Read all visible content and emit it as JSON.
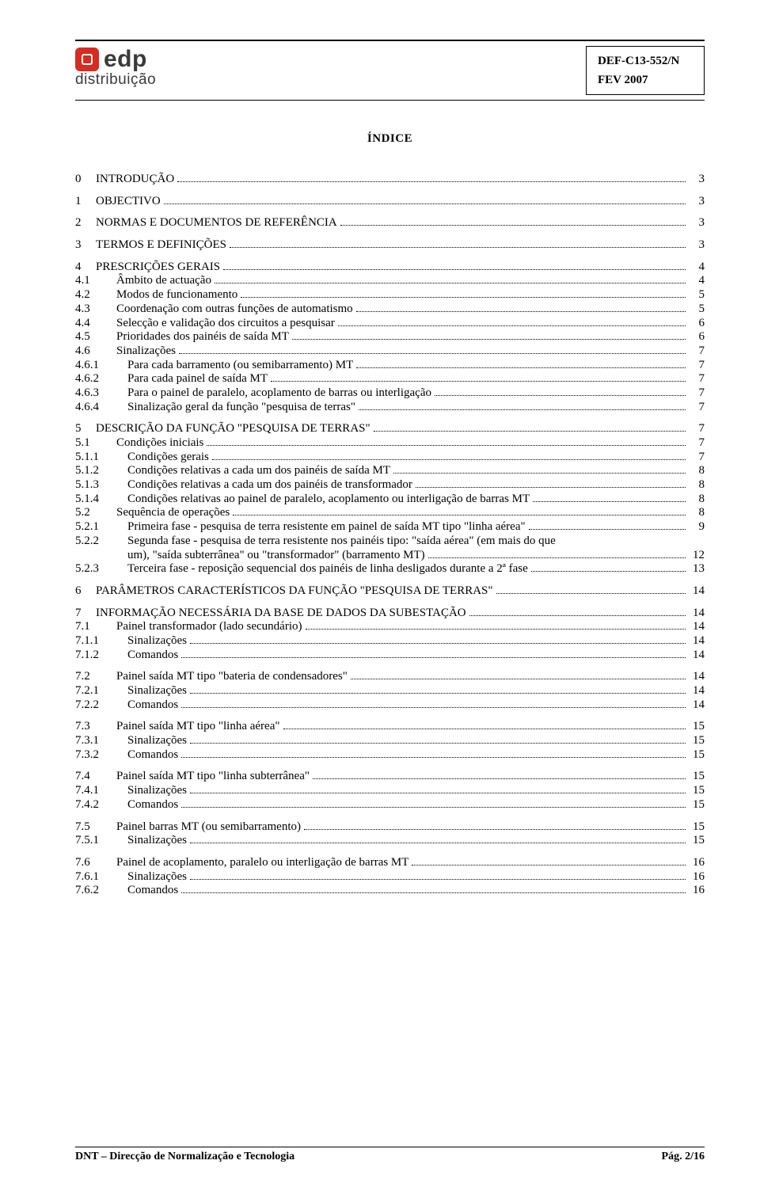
{
  "logo": {
    "brand": "edp",
    "sub": "distribuição"
  },
  "doc_ref": {
    "code": "DEF-C13-552/N",
    "date": "FEV 2007"
  },
  "toc_title": "ÍNDICE",
  "footer": {
    "left": "DNT – Direcção de Normalização e Tecnologia",
    "right": "Pág. 2/16"
  },
  "toc": [
    {
      "group": [
        {
          "n": "0",
          "t": "INTRODUÇÃO",
          "p": "3",
          "lvl": 0
        }
      ]
    },
    {
      "group": [
        {
          "n": "1",
          "t": "OBJECTIVO",
          "p": "3",
          "lvl": 0
        }
      ]
    },
    {
      "group": [
        {
          "n": "2",
          "t": "NORMAS E DOCUMENTOS DE REFERÊNCIA",
          "p": "3",
          "lvl": 0
        }
      ]
    },
    {
      "group": [
        {
          "n": "3",
          "t": "TERMOS E DEFINIÇÕES",
          "p": "3",
          "lvl": 0
        }
      ]
    },
    {
      "group": [
        {
          "n": "4",
          "t": "PRESCRIÇÕES GERAIS",
          "p": "4",
          "lvl": 0
        },
        {
          "n": "4.1",
          "t": "Âmbito de actuação",
          "p": "4",
          "lvl": 1
        },
        {
          "n": "4.2",
          "t": "Modos de funcionamento",
          "p": "5",
          "lvl": 1
        },
        {
          "n": "4.3",
          "t": "Coordenação com outras funções de automatismo",
          "p": "5",
          "lvl": 1
        },
        {
          "n": "4.4",
          "t": "Selecção e validação dos circuitos a pesquisar",
          "p": "6",
          "lvl": 1
        },
        {
          "n": "4.5",
          "t": "Prioridades dos painéis de saída MT",
          "p": "6",
          "lvl": 1
        },
        {
          "n": "4.6",
          "t": "Sinalizações",
          "p": "7",
          "lvl": 1
        },
        {
          "n": "4.6.1",
          "t": "Para cada barramento (ou semibarramento) MT",
          "p": "7",
          "lvl": 2
        },
        {
          "n": "4.6.2",
          "t": "Para cada painel de saída MT",
          "p": "7",
          "lvl": 2
        },
        {
          "n": "4.6.3",
          "t": "Para o painel de paralelo, acoplamento de barras ou interligação",
          "p": "7",
          "lvl": 2
        },
        {
          "n": "4.6.4",
          "t": "Sinalização geral da função \"pesquisa de terras\"",
          "p": "7",
          "lvl": 2
        }
      ]
    },
    {
      "group": [
        {
          "n": "5",
          "t": "DESCRIÇÃO DA FUNÇÃO \"PESQUISA DE TERRAS\"",
          "p": "7",
          "lvl": 0
        },
        {
          "n": "5.1",
          "t": "Condições iniciais",
          "p": "7",
          "lvl": 1
        },
        {
          "n": "5.1.1",
          "t": "Condições gerais",
          "p": "7",
          "lvl": 2
        },
        {
          "n": "5.1.2",
          "t": "Condições relativas a cada um dos painéis de saída MT",
          "p": "8",
          "lvl": 2
        },
        {
          "n": "5.1.3",
          "t": "Condições relativas a cada um dos painéis de transformador",
          "p": "8",
          "lvl": 2
        },
        {
          "n": "5.1.4",
          "t": "Condições relativas ao painel de paralelo, acoplamento ou interligação de barras MT",
          "p": "8",
          "lvl": 2
        },
        {
          "n": "5.2",
          "t": "Sequência de operações",
          "p": "8",
          "lvl": 1
        },
        {
          "n": "5.2.1",
          "t": "Primeira fase - pesquisa de terra resistente em painel de saída MT tipo \"linha aérea\"",
          "p": "9",
          "lvl": 2
        },
        {
          "n": "5.2.2",
          "t": "Segunda fase - pesquisa de terra resistente nos painéis tipo: \"saída aérea\" (em mais do que um), \"saída subterrânea\" ou \"transformador\" (barramento MT)",
          "p": "12",
          "lvl": 2,
          "wrap": true,
          "line1": "Segunda fase - pesquisa de terra resistente nos painéis tipo: \"saída aérea\" (em mais do que",
          "line2": "um), \"saída subterrânea\" ou \"transformador\" (barramento MT)"
        },
        {
          "n": "5.2.3",
          "t": "Terceira fase - reposição sequencial dos painéis de linha desligados durante a 2ª fase",
          "p": "13",
          "lvl": 2
        }
      ]
    },
    {
      "group": [
        {
          "n": "6",
          "t": "PARÂMETROS CARACTERÍSTICOS DA FUNÇÃO \"PESQUISA DE TERRAS\"",
          "p": "14",
          "lvl": 0
        }
      ]
    },
    {
      "group": [
        {
          "n": "7",
          "t": "INFORMAÇÃO NECESSÁRIA DA BASE DE DADOS DA SUBESTAÇÃO",
          "p": "14",
          "lvl": 0
        },
        {
          "n": "7.1",
          "t": "Painel transformador (lado secundário)",
          "p": "14",
          "lvl": 1
        },
        {
          "n": "7.1.1",
          "t": "Sinalizações",
          "p": "14",
          "lvl": 2
        },
        {
          "n": "7.1.2",
          "t": "Comandos",
          "p": "14",
          "lvl": 2
        }
      ]
    },
    {
      "group": [
        {
          "n": "7.2",
          "t": "Painel saída MT tipo \"bateria de condensadores\"",
          "p": "14",
          "lvl": 1
        },
        {
          "n": "7.2.1",
          "t": "Sinalizações",
          "p": "14",
          "lvl": 2
        },
        {
          "n": "7.2.2",
          "t": "Comandos",
          "p": "14",
          "lvl": 2
        }
      ]
    },
    {
      "group": [
        {
          "n": "7.3",
          "t": "Painel saída MT tipo \"linha aérea\"",
          "p": "15",
          "lvl": 1
        },
        {
          "n": "7.3.1",
          "t": "Sinalizações",
          "p": "15",
          "lvl": 2
        },
        {
          "n": "7.3.2",
          "t": "Comandos",
          "p": "15",
          "lvl": 2
        }
      ]
    },
    {
      "group": [
        {
          "n": "7.4",
          "t": "Painel saída MT tipo \"linha subterrânea\"",
          "p": "15",
          "lvl": 1
        },
        {
          "n": "7.4.1",
          "t": "Sinalizações",
          "p": "15",
          "lvl": 2
        },
        {
          "n": "7.4.2",
          "t": "Comandos",
          "p": "15",
          "lvl": 2
        }
      ]
    },
    {
      "group": [
        {
          "n": "7.5",
          "t": "Painel barras MT (ou semibarramento)",
          "p": "15",
          "lvl": 1
        },
        {
          "n": "7.5.1",
          "t": "Sinalizações",
          "p": "15",
          "lvl": 2
        }
      ]
    },
    {
      "group": [
        {
          "n": "7.6",
          "t": "Painel de acoplamento, paralelo ou interligação de barras MT",
          "p": "16",
          "lvl": 1
        },
        {
          "n": "7.6.1",
          "t": "Sinalizações",
          "p": "16",
          "lvl": 2
        },
        {
          "n": "7.6.2",
          "t": "Comandos",
          "p": "16",
          "lvl": 2
        }
      ]
    }
  ]
}
